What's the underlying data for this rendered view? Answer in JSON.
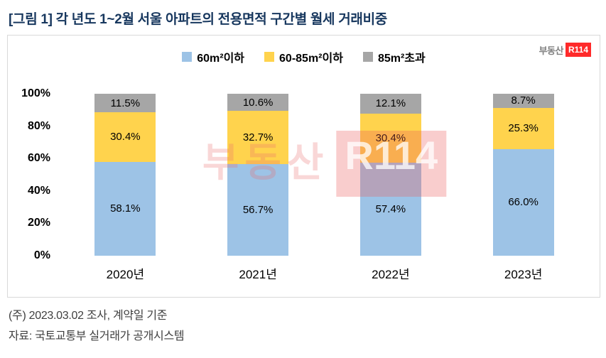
{
  "title": "[그림 1] 각 년도 1~2월 서울 아파트의 전용면적 구간별 월세 거래비중",
  "logo": {
    "text": "부동산",
    "badge": "R114"
  },
  "watermark": {
    "text": "부동산",
    "badge": "R114"
  },
  "chart_data": {
    "type": "bar",
    "stacked": true,
    "title": "각 년도 1~2월 서울 아파트의 전용면적 구간별 월세 거래비중",
    "categories": [
      "2020년",
      "2021년",
      "2022년",
      "2023년"
    ],
    "series": [
      {
        "name": "60m²이하",
        "color": "#9DC3E6",
        "values": [
          58.1,
          56.7,
          57.4,
          66.0
        ],
        "labels": [
          "58.1%",
          "56.7%",
          "57.4%",
          "66.0%"
        ]
      },
      {
        "name": "60-85m²이하",
        "color": "#FFD34D",
        "values": [
          30.4,
          32.7,
          30.4,
          25.3
        ],
        "labels": [
          "30.4%",
          "32.7%",
          "30.4%",
          "25.3%"
        ]
      },
      {
        "name": "85m²초과",
        "color": "#A6A6A6",
        "values": [
          11.5,
          10.6,
          12.1,
          8.7
        ],
        "labels": [
          "11.5%",
          "10.6%",
          "12.1%",
          "8.7%"
        ]
      }
    ],
    "xlabel": "",
    "ylabel": "",
    "ylim": [
      0,
      100
    ],
    "ytick_values": [
      100,
      80,
      60,
      40,
      20,
      0
    ],
    "yticks": [
      "100%",
      "80%",
      "60%",
      "40%",
      "20%",
      "0%"
    ],
    "grid": false,
    "legend_position": "top"
  },
  "footer": {
    "line1": "(주) 2023.03.02 조사, 계약일 기준",
    "line2": "자료: 국토교통부 실거래가 공개시스템"
  }
}
